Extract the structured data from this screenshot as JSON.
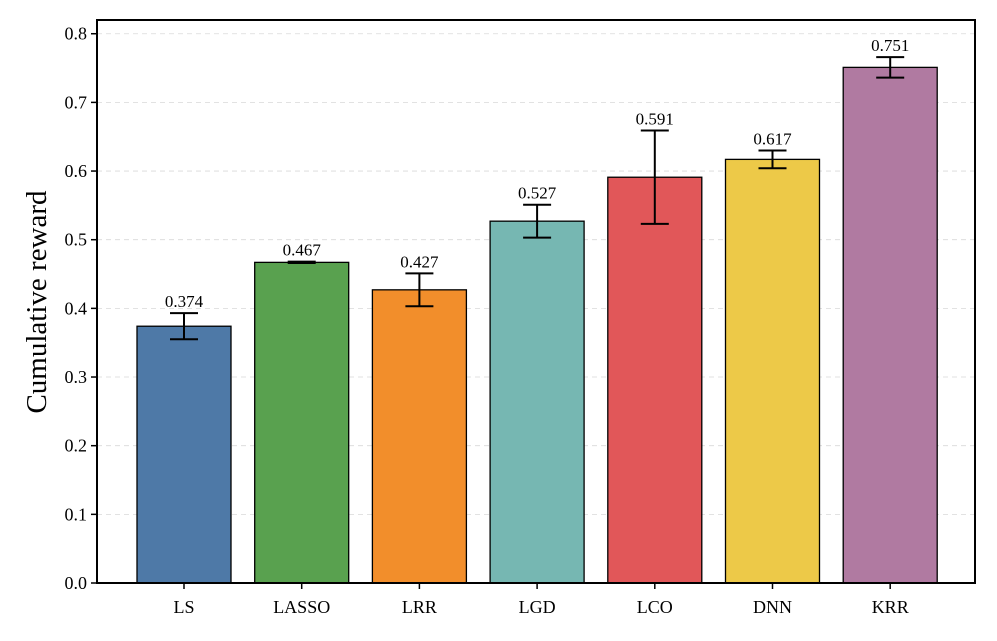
{
  "chart_data": {
    "type": "bar",
    "title": "",
    "xlabel": "",
    "ylabel": "Cumulative reward",
    "ylim": [
      0,
      0.82
    ],
    "yticks": [
      "0.0",
      "0.1",
      "0.2",
      "0.3",
      "0.4",
      "0.5",
      "0.6",
      "0.7",
      "0.8"
    ],
    "grid": true,
    "categories": [
      "LS",
      "LASSO",
      "LRR",
      "LGD",
      "LCO",
      "DNN",
      "KRR"
    ],
    "values": [
      0.374,
      0.467,
      0.427,
      0.527,
      0.591,
      0.617,
      0.751
    ],
    "value_labels": [
      "0.374",
      "0.467",
      "0.427",
      "0.527",
      "0.591",
      "0.617",
      "0.751"
    ],
    "errors": [
      0.019,
      0.001,
      0.024,
      0.024,
      0.068,
      0.013,
      0.015
    ],
    "colors": [
      "#4e79a7",
      "#59a14f",
      "#f28e2b",
      "#76b7b2",
      "#e15759",
      "#edc948",
      "#b07aa1"
    ]
  }
}
